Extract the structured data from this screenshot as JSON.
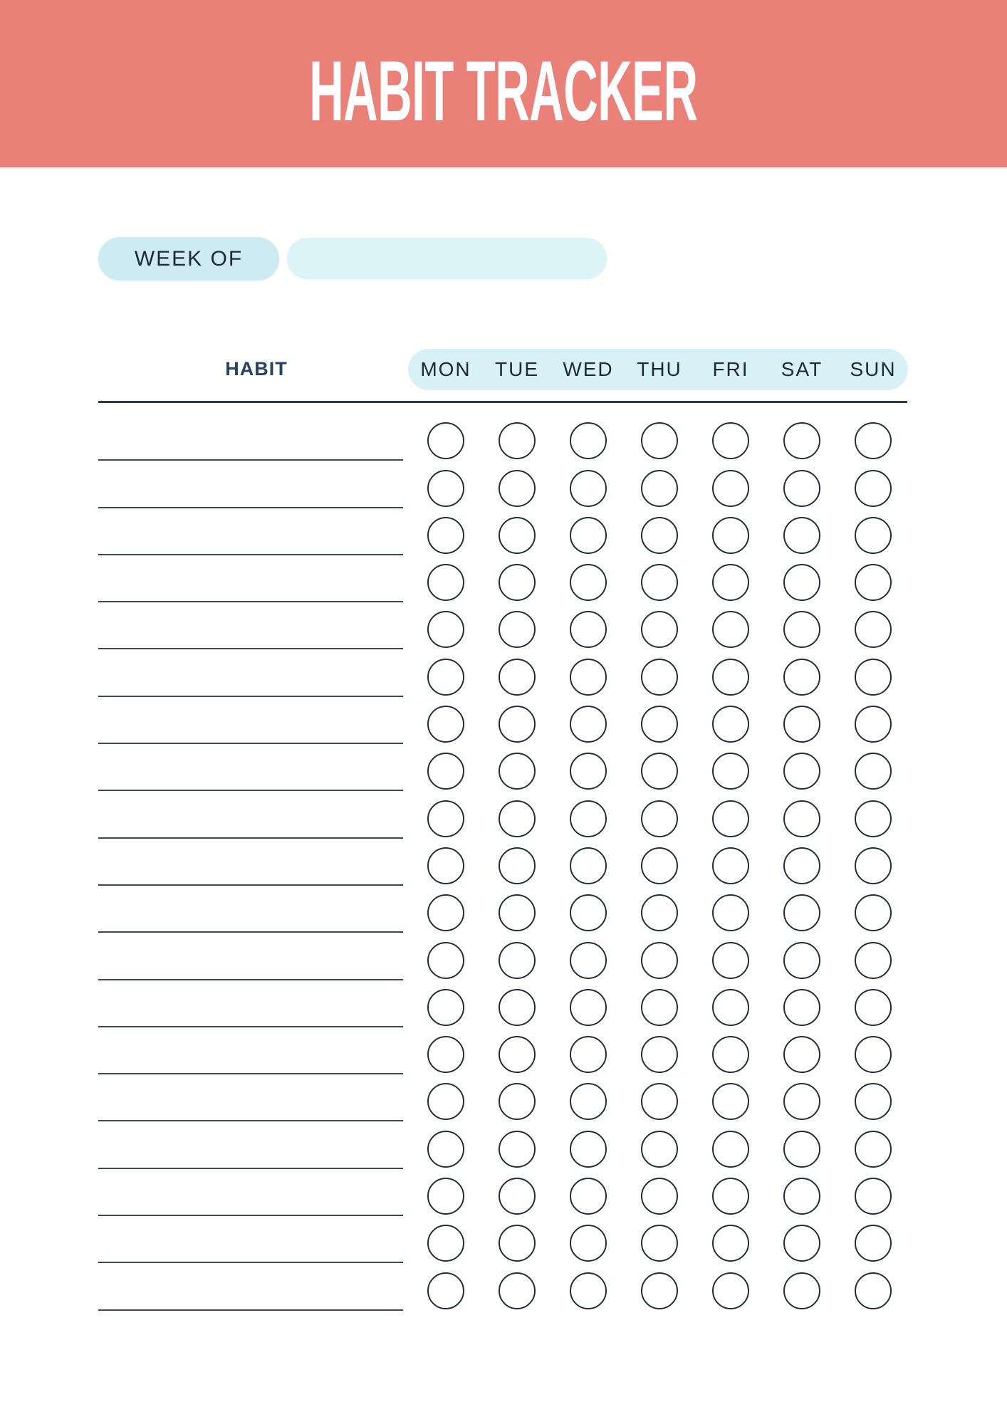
{
  "banner": {
    "title": "HABIT TRACKER"
  },
  "week": {
    "label": "WEEK OF",
    "value": ""
  },
  "table": {
    "habit_header": "HABIT",
    "days": [
      "MON",
      "TUE",
      "WED",
      "THU",
      "FRI",
      "SAT",
      "SUN"
    ],
    "rows": [
      {
        "habit": "",
        "checks": [
          false,
          false,
          false,
          false,
          false,
          false,
          false
        ]
      },
      {
        "habit": "",
        "checks": [
          false,
          false,
          false,
          false,
          false,
          false,
          false
        ]
      },
      {
        "habit": "",
        "checks": [
          false,
          false,
          false,
          false,
          false,
          false,
          false
        ]
      },
      {
        "habit": "",
        "checks": [
          false,
          false,
          false,
          false,
          false,
          false,
          false
        ]
      },
      {
        "habit": "",
        "checks": [
          false,
          false,
          false,
          false,
          false,
          false,
          false
        ]
      },
      {
        "habit": "",
        "checks": [
          false,
          false,
          false,
          false,
          false,
          false,
          false
        ]
      },
      {
        "habit": "",
        "checks": [
          false,
          false,
          false,
          false,
          false,
          false,
          false
        ]
      },
      {
        "habit": "",
        "checks": [
          false,
          false,
          false,
          false,
          false,
          false,
          false
        ]
      },
      {
        "habit": "",
        "checks": [
          false,
          false,
          false,
          false,
          false,
          false,
          false
        ]
      },
      {
        "habit": "",
        "checks": [
          false,
          false,
          false,
          false,
          false,
          false,
          false
        ]
      },
      {
        "habit": "",
        "checks": [
          false,
          false,
          false,
          false,
          false,
          false,
          false
        ]
      },
      {
        "habit": "",
        "checks": [
          false,
          false,
          false,
          false,
          false,
          false,
          false
        ]
      },
      {
        "habit": "",
        "checks": [
          false,
          false,
          false,
          false,
          false,
          false,
          false
        ]
      },
      {
        "habit": "",
        "checks": [
          false,
          false,
          false,
          false,
          false,
          false,
          false
        ]
      },
      {
        "habit": "",
        "checks": [
          false,
          false,
          false,
          false,
          false,
          false,
          false
        ]
      },
      {
        "habit": "",
        "checks": [
          false,
          false,
          false,
          false,
          false,
          false,
          false
        ]
      },
      {
        "habit": "",
        "checks": [
          false,
          false,
          false,
          false,
          false,
          false,
          false
        ]
      },
      {
        "habit": "",
        "checks": [
          false,
          false,
          false,
          false,
          false,
          false,
          false
        ]
      },
      {
        "habit": "",
        "checks": [
          false,
          false,
          false,
          false,
          false,
          false,
          false
        ]
      }
    ]
  },
  "colors": {
    "banner": "#EA8179",
    "title_text": "#FFFFFF",
    "pill_label_bg": "#CDEBF1",
    "pill_input_bg": "#DCF4F8",
    "band_bg": "#D7F1F6",
    "heading_navy": "#27435C",
    "label_dark": "#1C2B33",
    "rule": "#2B3B46",
    "line": "#3C4A52",
    "circle_stroke": "#232E36"
  }
}
